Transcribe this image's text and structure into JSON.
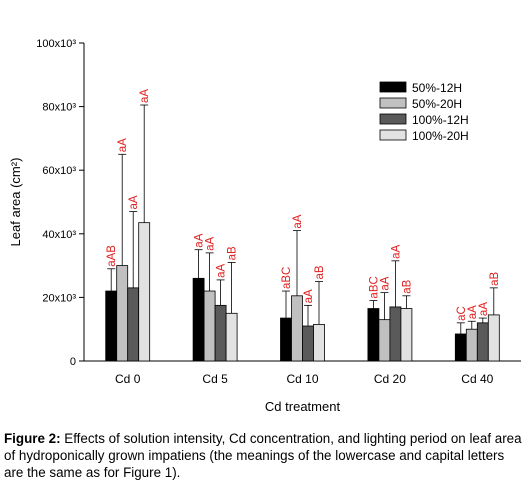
{
  "chart_data": {
    "type": "bar",
    "categories": [
      "Cd 0",
      "Cd 5",
      "Cd 10",
      "Cd 20",
      "Cd 40"
    ],
    "series": [
      {
        "name": "50%-12H",
        "color": "#000000",
        "values": [
          22,
          26,
          13.5,
          16.5,
          8.5
        ],
        "errors": [
          7,
          9,
          8.5,
          2.5,
          3.5
        ],
        "labels": [
          "aAB",
          "aA",
          "aBC",
          "aBC",
          "aC"
        ]
      },
      {
        "name": "50%-20H",
        "color": "#c0c0c0",
        "values": [
          30,
          22,
          20.5,
          13,
          10
        ],
        "errors": [
          35,
          12,
          20.5,
          8.5,
          2.5
        ],
        "labels": [
          "aA",
          "aA",
          "aA",
          "aA",
          "aA"
        ]
      },
      {
        "name": "100%-12H",
        "color": "#5a5a5a",
        "values": [
          23,
          17.5,
          11,
          17,
          12
        ],
        "errors": [
          24,
          8,
          6.5,
          14.5,
          1.5
        ],
        "labels": [
          "aA",
          "aA",
          "aA",
          "aA",
          "aA"
        ]
      },
      {
        "name": "100%-20H",
        "color": "#e2e2e2",
        "values": [
          43.5,
          15,
          11.5,
          16.5,
          14.5
        ],
        "errors": [
          37,
          16,
          13.5,
          4,
          8.5
        ],
        "labels": [
          "aA",
          "aB",
          "aB",
          "aB",
          "aB"
        ]
      }
    ],
    "title": "",
    "xlabel": "Cd treatment",
    "ylabel": "Leaf area (cm²)",
    "ylim": [
      0,
      100
    ],
    "yticks": [
      0,
      20,
      40,
      60,
      80,
      100
    ],
    "ytick_labels": [
      "0",
      "20x10³",
      "40x10³",
      "60x10³",
      "80x10³",
      "100x10³"
    ],
    "legend_position": "top-right",
    "annotation_color": "#e02020",
    "grid": false
  },
  "caption": {
    "label": "Figure 2:",
    "text": " Effects of solution intensity, Cd concentration, and lighting period on leaf area of hydroponically grown impatiens (the meanings of the lowercase and capital letters are the same as for Figure 1)."
  }
}
